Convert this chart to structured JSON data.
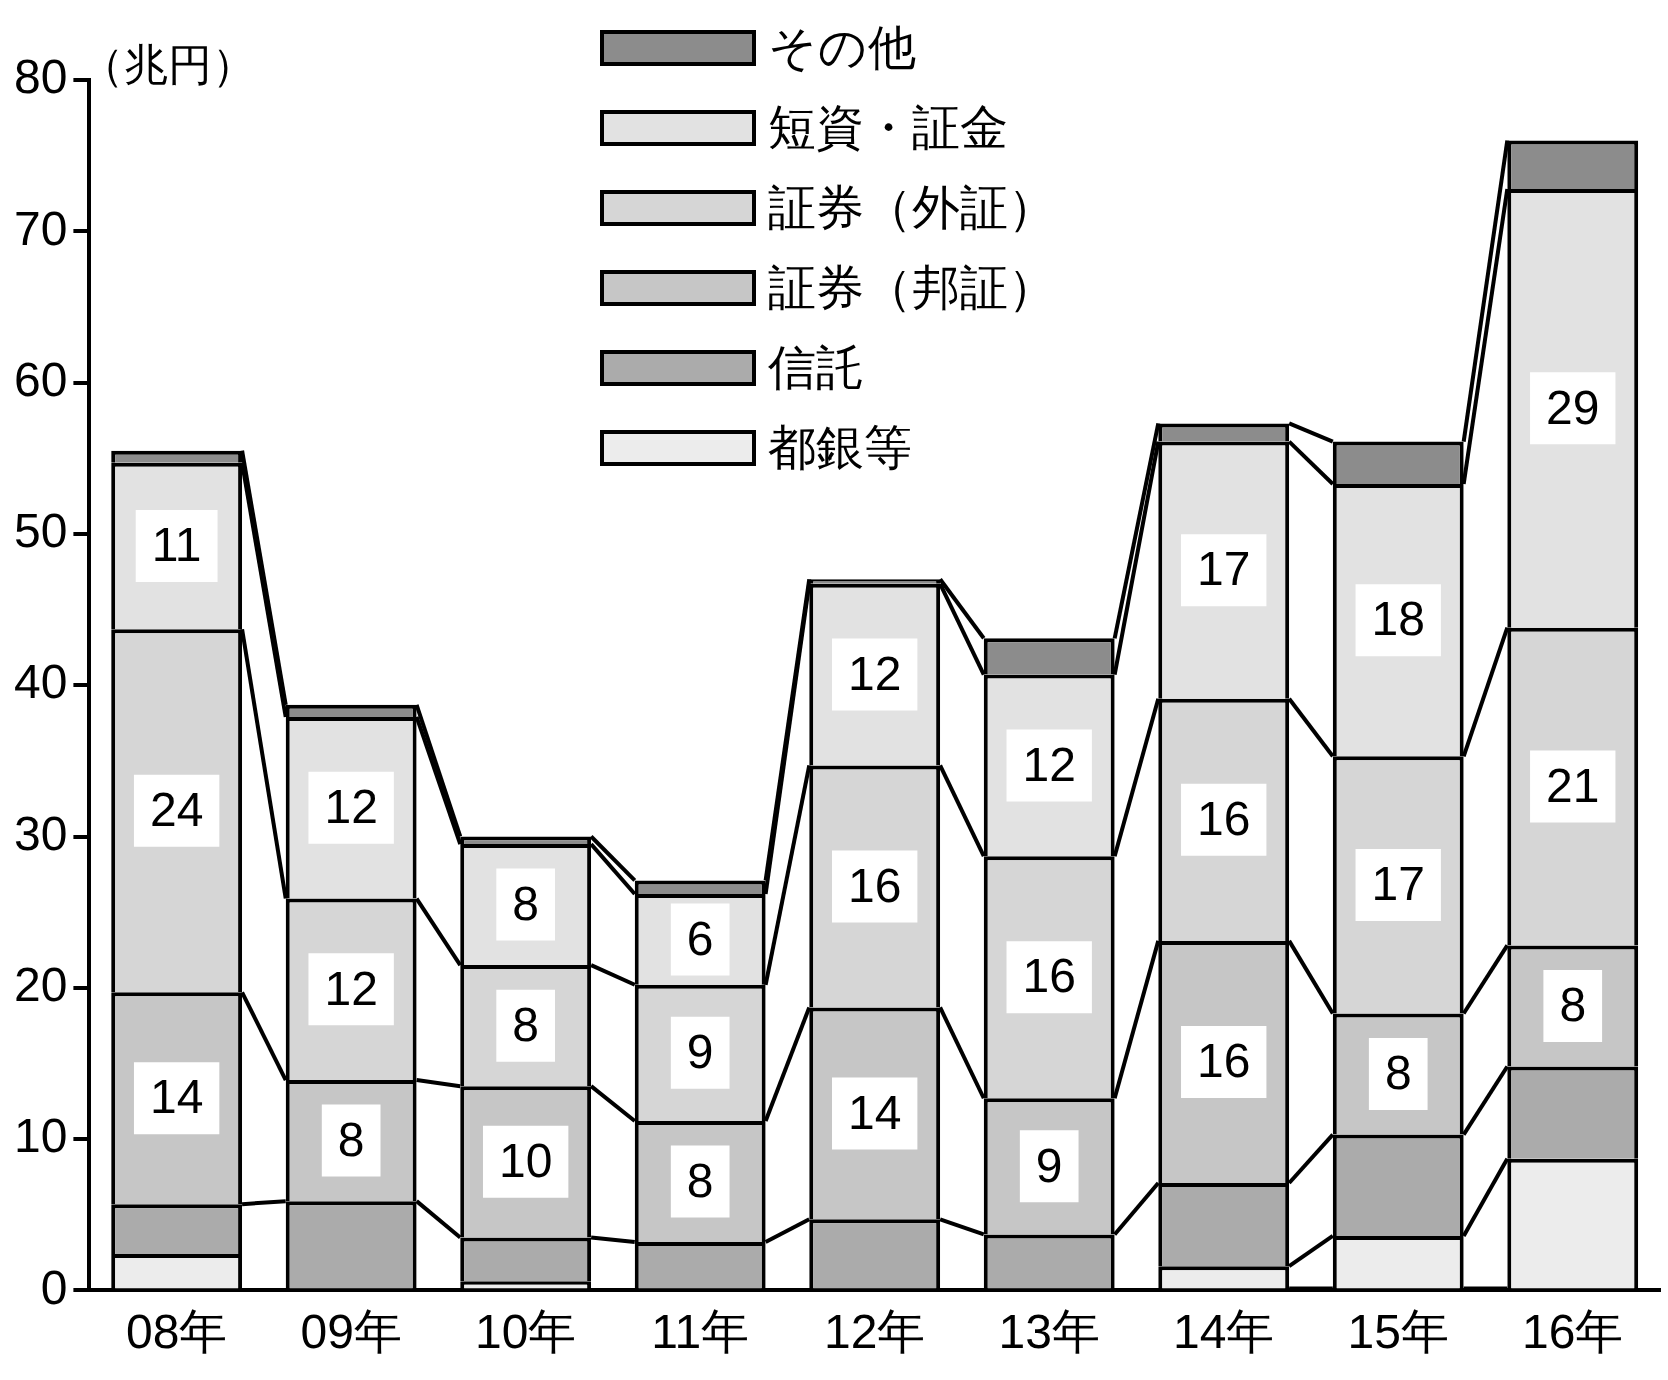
{
  "chart_data": {
    "type": "bar",
    "stacked": true,
    "ylabel": "（兆円）",
    "categories": [
      "08年",
      "09年",
      "10年",
      "11年",
      "12年",
      "13年",
      "14年",
      "15年",
      "16年"
    ],
    "ylim": [
      0,
      80
    ],
    "yticks": [
      0,
      10,
      20,
      30,
      40,
      50,
      60,
      70,
      80
    ],
    "grid": false,
    "legend": "top",
    "series": [
      {
        "name": "都銀等",
        "color": "#ececec",
        "values": [
          2.4,
          null,
          0.6,
          null,
          null,
          null,
          1.6,
          3.6,
          8.7
        ]
      },
      {
        "name": "信託",
        "color": "#ababab",
        "values": [
          3.3,
          5.9,
          2.9,
          3.2,
          4.7,
          3.7,
          5.5,
          6.7,
          6.1
        ]
      },
      {
        "name": "証券（邦証）",
        "color": "#c6c6c6",
        "values": [
          14,
          8,
          10,
          8,
          14,
          9,
          16,
          8,
          8
        ],
        "value_labels": [
          "14",
          "8",
          "10",
          "8",
          "14",
          "9",
          "16",
          "8",
          "8"
        ]
      },
      {
        "name": "証券（外証）",
        "color": "#d6d6d6",
        "values": [
          24,
          12,
          8,
          9,
          16,
          16,
          16,
          17,
          21
        ],
        "value_labels": [
          "24",
          "12",
          "8",
          "9",
          "16",
          "16",
          "16",
          "17",
          "21"
        ]
      },
      {
        "name": "短資・証金",
        "color": "#e2e2e2",
        "values": [
          11,
          12,
          8,
          6,
          12,
          12,
          17,
          18,
          29
        ],
        "value_labels": [
          "11",
          "12",
          "8",
          "6",
          "12",
          "12",
          "17",
          "18",
          "29"
        ]
      },
      {
        "name": "その他",
        "color": "#8c8c8c",
        "values": [
          0.8,
          0.8,
          0.5,
          0.9,
          0.3,
          2.4,
          1.2,
          2.8,
          3.2
        ]
      }
    ]
  }
}
